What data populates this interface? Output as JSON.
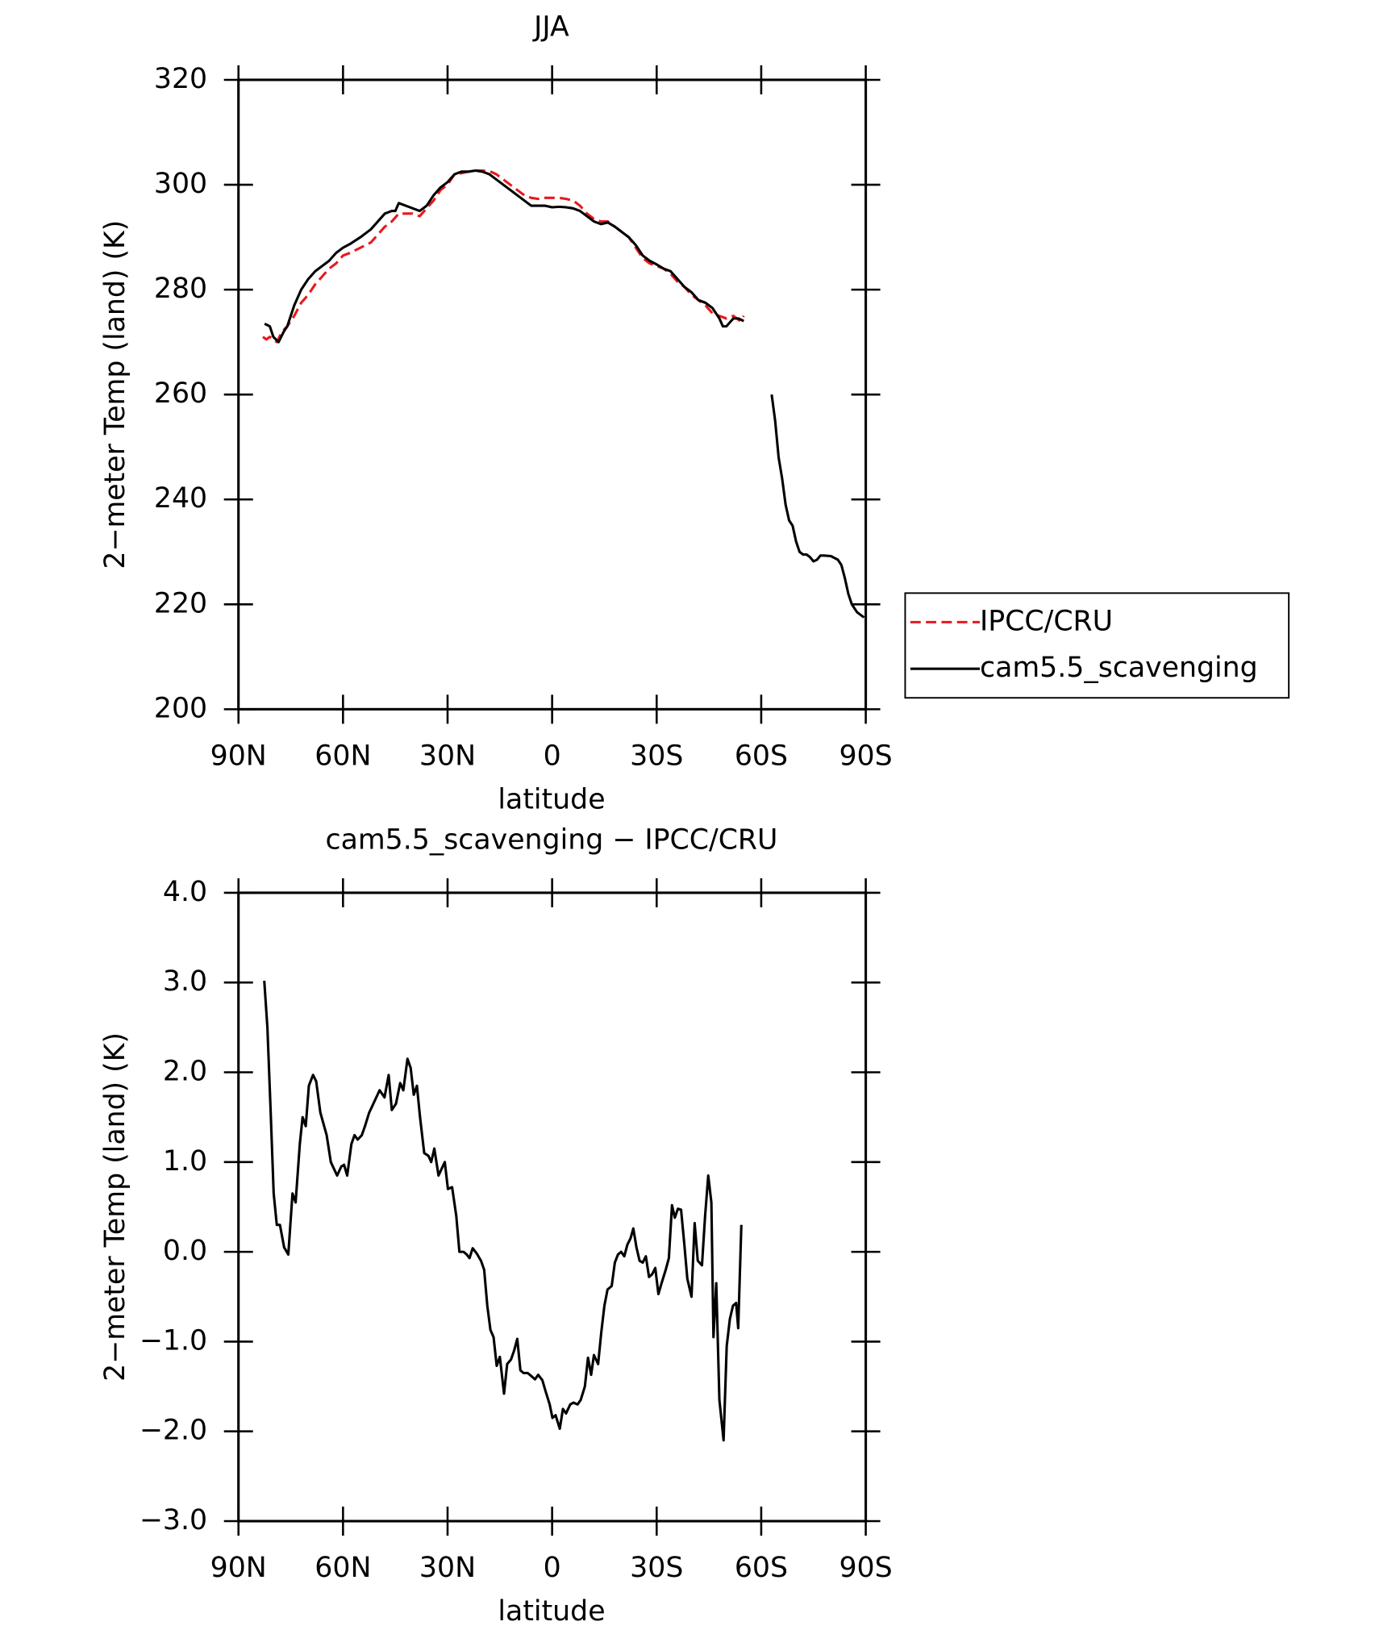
{
  "chart_data": [
    {
      "type": "line",
      "title": "JJA",
      "xlabel": "latitude",
      "ylabel": "2−meter Temp (land) (K)",
      "xlim": [
        90,
        -90
      ],
      "xticks": [
        {
          "value": 90,
          "label": "90N"
        },
        {
          "value": 60,
          "label": "60N"
        },
        {
          "value": 30,
          "label": "30N"
        },
        0,
        {
          "value": -30,
          "label": "30S"
        },
        {
          "value": -60,
          "label": "60S"
        },
        {
          "value": -90,
          "label": "90S"
        }
      ],
      "ylim": [
        200,
        320
      ],
      "yticks": [
        200,
        220,
        240,
        260,
        280,
        300,
        320
      ],
      "grid": false,
      "legend": "right",
      "series": [
        {
          "name": "IPCC/CRU",
          "color": "#e8191c",
          "line_style": "dashed",
          "x": [
            83,
            82,
            81,
            79,
            77.5,
            76,
            74,
            72,
            70,
            68,
            66,
            64,
            62,
            60,
            58,
            55,
            52,
            50,
            48,
            46,
            44,
            42,
            40,
            38,
            36,
            34,
            32,
            30,
            28,
            26,
            24,
            22,
            20,
            18,
            16,
            14,
            12,
            10,
            8,
            6,
            4,
            2,
            0,
            -2,
            -4,
            -6,
            -8,
            -10,
            -12,
            -14,
            -16,
            -18,
            -20,
            -22,
            -24,
            -26,
            -28,
            -30,
            -32,
            -34,
            -36,
            -38,
            -40,
            -42,
            -44,
            -46,
            -48,
            -50,
            -52,
            -53,
            -54,
            -55
          ],
          "values": [
            271,
            270.5,
            271,
            270,
            272,
            273,
            275,
            277.5,
            279,
            281,
            282.5,
            284,
            285,
            286.5,
            287,
            288,
            289,
            290.5,
            292,
            293,
            294.5,
            294.5,
            294.5,
            294,
            295.5,
            297,
            299,
            300,
            302,
            302.2,
            302.5,
            302.7,
            302.7,
            302.6,
            302,
            301,
            300,
            299,
            298,
            297.5,
            297.3,
            297.5,
            297.5,
            297.5,
            297.3,
            297,
            296,
            294.5,
            293.5,
            293,
            293,
            292,
            291,
            290,
            288,
            286,
            285,
            284.5,
            284,
            283,
            281.5,
            280.5,
            279,
            278,
            277,
            275.5,
            275,
            274.5,
            275,
            274.5,
            274,
            275
          ]
        },
        {
          "name": "cam5.5_scavenging",
          "color": "#000000",
          "line_style": "solid",
          "x": [
            82.5,
            81,
            80,
            78.5,
            77,
            76,
            74,
            72,
            70,
            68,
            66,
            64,
            62,
            60,
            58,
            55,
            52,
            50,
            48,
            46,
            45,
            44,
            42,
            40,
            38,
            36,
            34,
            32,
            30,
            28,
            26,
            24,
            22,
            20,
            18,
            16,
            14,
            12,
            10,
            8,
            6,
            4,
            2,
            0,
            -2,
            -4,
            -6,
            -8,
            -10,
            -12,
            -14,
            -16,
            -18,
            -20,
            -22,
            -24,
            -26,
            -28,
            -30,
            -32,
            -34,
            -36,
            -38,
            -40,
            -42,
            -44,
            -46,
            -48,
            -49,
            -50,
            -52,
            -53.5,
            -55,
            null,
            -63,
            -64,
            -65,
            -66,
            -67,
            -68,
            -69,
            -70,
            -71,
            -72,
            -73,
            -74,
            -75,
            -76,
            -77,
            -78,
            -80,
            -82,
            -83,
            -84,
            -85,
            -86,
            -87.5,
            -89.5
          ],
          "values": [
            273.5,
            273,
            271,
            270,
            272,
            273,
            277,
            280,
            282,
            283.5,
            284.5,
            285.5,
            287,
            288,
            288.7,
            290,
            291.5,
            293,
            294.5,
            295,
            295,
            296.5,
            296,
            295.5,
            295,
            296,
            298,
            299.5,
            300.5,
            302,
            302.5,
            302.5,
            302.7,
            302.5,
            302,
            301,
            300,
            299,
            298,
            297,
            296,
            296,
            296,
            295.7,
            295.8,
            295.7,
            295.5,
            295,
            294,
            293,
            292.5,
            292.8,
            292,
            291,
            290,
            288.5,
            286.5,
            285.5,
            284.8,
            284,
            283.5,
            282,
            280.5,
            279.5,
            278,
            277.5,
            276.5,
            274.5,
            273,
            273,
            274.5,
            274.5,
            274,
            null,
            260,
            255,
            248,
            244,
            239,
            236,
            235,
            232,
            230,
            229.5,
            229.5,
            229,
            228.2,
            228.5,
            229.3,
            229.3,
            229.2,
            228.5,
            227.5,
            225,
            222,
            220,
            218.5,
            217.5
          ]
        }
      ]
    },
    {
      "type": "line",
      "title": "cam5.5_scavenging − IPCC/CRU",
      "xlabel": "latitude",
      "ylabel": "2−meter Temp (land) (K)",
      "xlim": [
        90,
        -90
      ],
      "xticks": [
        {
          "value": 90,
          "label": "90N"
        },
        {
          "value": 60,
          "label": "60N"
        },
        {
          "value": 30,
          "label": "30N"
        },
        0,
        {
          "value": -30,
          "label": "30S"
        },
        {
          "value": -60,
          "label": "60S"
        },
        {
          "value": -90,
          "label": "90S"
        }
      ],
      "ylim": [
        -3,
        4
      ],
      "yticks": [
        {
          "value": -3,
          "label": "−3.0"
        },
        {
          "value": -2,
          "label": "−2.0"
        },
        {
          "value": -1,
          "label": "−1.0"
        },
        {
          "value": 0,
          "label": "0.0"
        },
        {
          "value": 1,
          "label": "1.0"
        },
        {
          "value": 2,
          "label": "2.0"
        },
        {
          "value": 3,
          "label": "3.0"
        },
        {
          "value": 4,
          "label": "4.0"
        }
      ],
      "grid": false,
      "series": [
        {
          "color": "#000000",
          "line_style": "solid",
          "x": [
            82.6,
            81.7,
            80.8,
            79.9,
            79.0,
            78.1,
            76.9,
            75.7,
            74.5,
            73.6,
            72.4,
            71.6,
            70.7,
            69.8,
            68.6,
            67.7,
            66.5,
            64.7,
            63.5,
            61.7,
            60.5,
            59.7,
            58.8,
            57.6,
            56.7,
            55.8,
            54.6,
            53.7,
            52.5,
            51.3,
            49.5,
            48.1,
            46.9,
            46.0,
            44.8,
            43.6,
            42.7,
            41.5,
            40.6,
            39.7,
            38.8,
            37.9,
            36.7,
            35.5,
            34.7,
            33.8,
            32.6,
            30.8,
            29.9,
            28.7,
            27.5,
            26.6,
            25.4,
            24.5,
            23.7,
            22.8,
            21.6,
            20.4,
            19.5,
            18.6,
            17.7,
            16.8,
            15.9,
            15.0,
            13.8,
            12.9,
            11.8,
            10.9,
            10.0,
            9.1,
            8.2,
            7.0,
            6.1,
            4.9,
            4.0,
            2.8,
            1.9,
            0.7,
            -0.1,
            -1.0,
            -2.2,
            -3.1,
            -4.0,
            -5.2,
            -6.1,
            -7.3,
            -8.2,
            -9.4,
            -10.3,
            -11.2,
            -12.0,
            -13.2,
            -14.1,
            -15.0,
            -15.9,
            -17.1,
            -18.0,
            -18.9,
            -19.8,
            -20.7,
            -21.6,
            -22.5,
            -23.3,
            -24.2,
            -25.1,
            -26.0,
            -26.9,
            -27.8,
            -28.7,
            -29.6,
            -30.5,
            -31.4,
            -32.6,
            -33.5,
            -34.4,
            -35.2,
            -36.1,
            -37.0,
            -37.9,
            -38.8,
            -40.0,
            -40.9,
            -41.8,
            -43.0,
            -43.9,
            -44.8,
            -45.7,
            -46.3,
            -47.1,
            -48.0,
            -49.2,
            -50.1,
            -51.0,
            -51.9,
            -52.8,
            -53.4,
            -54.3
          ],
          "values": [
            3.02,
            2.5,
            1.6,
            0.65,
            0.3,
            0.3,
            0.05,
            -0.03,
            0.65,
            0.55,
            1.2,
            1.5,
            1.4,
            1.85,
            1.97,
            1.9,
            1.55,
            1.3,
            1.0,
            0.85,
            0.95,
            0.97,
            0.85,
            1.2,
            1.3,
            1.25,
            1.3,
            1.4,
            1.55,
            1.65,
            1.8,
            1.72,
            1.97,
            1.58,
            1.65,
            1.88,
            1.8,
            2.15,
            2.05,
            1.75,
            1.85,
            1.5,
            1.1,
            1.07,
            1.0,
            1.15,
            0.85,
            1.0,
            0.7,
            0.72,
            0.4,
            0.0,
            0.0,
            -0.03,
            -0.07,
            0.04,
            -0.02,
            -0.1,
            -0.2,
            -0.6,
            -0.87,
            -0.95,
            -1.27,
            -1.17,
            -1.58,
            -1.25,
            -1.2,
            -1.1,
            -0.97,
            -1.32,
            -1.35,
            -1.35,
            -1.38,
            -1.42,
            -1.37,
            -1.43,
            -1.55,
            -1.7,
            -1.85,
            -1.82,
            -1.97,
            -1.75,
            -1.8,
            -1.7,
            -1.68,
            -1.7,
            -1.65,
            -1.5,
            -1.18,
            -1.37,
            -1.15,
            -1.25,
            -0.9,
            -0.6,
            -0.42,
            -0.38,
            -0.12,
            -0.03,
            0.0,
            -0.05,
            0.08,
            0.15,
            0.26,
            0.05,
            -0.1,
            -0.12,
            -0.05,
            -0.28,
            -0.25,
            -0.18,
            -0.47,
            -0.35,
            -0.2,
            -0.07,
            0.52,
            0.38,
            0.48,
            0.47,
            0.1,
            -0.3,
            -0.5,
            0.32,
            -0.1,
            -0.15,
            0.4,
            0.85,
            0.55,
            -0.95,
            -0.35,
            -1.65,
            -2.1,
            -1.05,
            -0.75,
            -0.6,
            -0.57,
            -0.85,
            0.3
          ]
        }
      ]
    }
  ]
}
